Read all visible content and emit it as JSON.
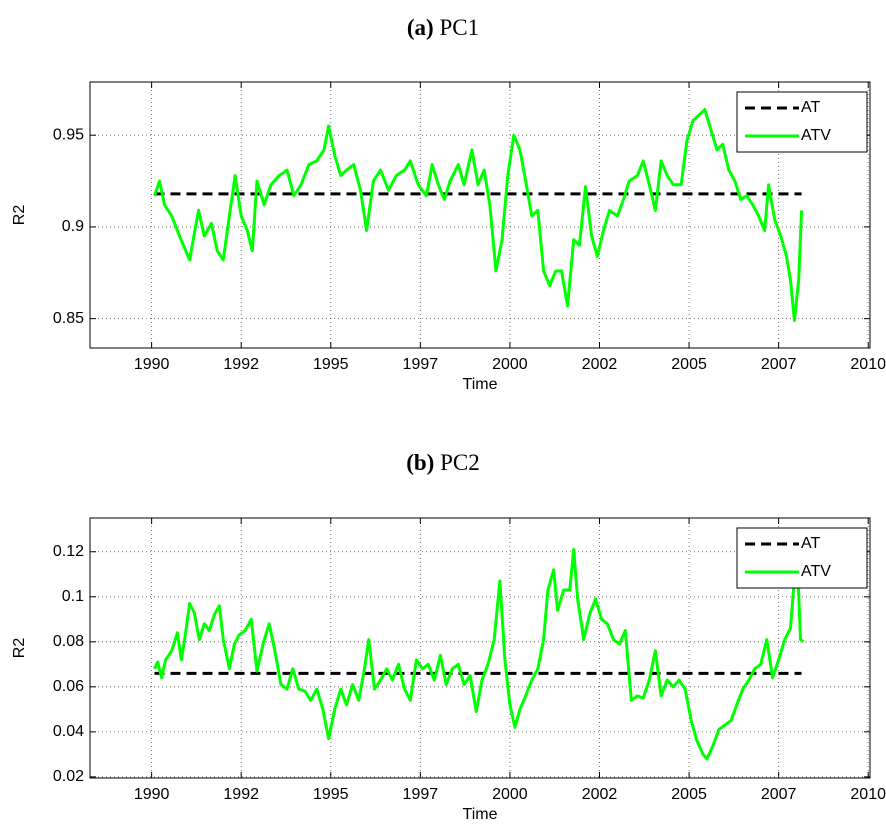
{
  "chart_data": [
    {
      "type": "line",
      "panel_label": "(a)",
      "title": "PC1",
      "xlabel": "Time",
      "ylabel": "R2",
      "xlim": [
        1988.28,
        2010.05
      ],
      "xticks": [
        1990,
        {
          "value": 1992.5,
          "label": "1992"
        },
        1995,
        {
          "value": 1997.5,
          "label": "1997"
        },
        2000,
        {
          "value": 2002.5,
          "label": "2002"
        },
        2005,
        {
          "value": 2007.5,
          "label": "2007"
        },
        2010
      ],
      "ylim": [
        0.834,
        0.979
      ],
      "yticks": [
        0.85,
        0.9,
        0.95
      ],
      "grid": true,
      "legend": "upper right",
      "series": [
        {
          "name": "AT",
          "color": "#000000",
          "style": "dashed",
          "x": [
            1990.08,
            2008.14
          ],
          "values": [
            0.918,
            0.918
          ]
        },
        {
          "name": "ATV",
          "color": "#00ff00",
          "style": "solid",
          "x": [
            1990.08,
            1990.22,
            1990.36,
            1990.56,
            1990.78,
            1991.06,
            1991.31,
            1991.47,
            1991.67,
            1991.83,
            1992.0,
            1992.17,
            1992.33,
            1992.5,
            1992.67,
            1992.81,
            1992.94,
            1993.14,
            1993.33,
            1993.56,
            1993.78,
            1993.97,
            1994.17,
            1994.39,
            1994.61,
            1994.81,
            1994.94,
            1995.11,
            1995.28,
            1995.44,
            1995.64,
            1995.83,
            1996.0,
            1996.19,
            1996.39,
            1996.61,
            1996.83,
            1997.06,
            1997.22,
            1997.44,
            1997.67,
            1997.83,
            1998.0,
            1998.17,
            1998.33,
            1998.56,
            1998.72,
            1998.94,
            1999.11,
            1999.28,
            1999.44,
            1999.61,
            1999.78,
            1999.94,
            2000.11,
            2000.28,
            2000.44,
            2000.61,
            2000.78,
            2000.94,
            2001.11,
            2001.28,
            2001.44,
            2001.61,
            2001.78,
            2001.94,
            2002.11,
            2002.28,
            2002.44,
            2002.61,
            2002.78,
            2003.0,
            2003.17,
            2003.33,
            2003.56,
            2003.72,
            2003.89,
            2004.06,
            2004.22,
            2004.39,
            2004.56,
            2004.78,
            2004.94,
            2005.11,
            2005.28,
            2005.44,
            2005.61,
            2005.78,
            2005.94,
            2006.11,
            2006.28,
            2006.44,
            2006.61,
            2006.78,
            2006.94,
            2007.11,
            2007.22,
            2007.39,
            2007.56,
            2007.72,
            2007.83,
            2007.94,
            2008.06,
            2008.14
          ],
          "values": [
            0.917,
            0.925,
            0.912,
            0.906,
            0.895,
            0.882,
            0.909,
            0.895,
            0.902,
            0.887,
            0.882,
            0.906,
            0.928,
            0.906,
            0.898,
            0.887,
            0.925,
            0.912,
            0.923,
            0.928,
            0.931,
            0.917,
            0.923,
            0.934,
            0.936,
            0.942,
            0.955,
            0.939,
            0.928,
            0.931,
            0.934,
            0.92,
            0.898,
            0.925,
            0.931,
            0.92,
            0.928,
            0.931,
            0.936,
            0.923,
            0.917,
            0.934,
            0.923,
            0.915,
            0.925,
            0.934,
            0.923,
            0.942,
            0.923,
            0.931,
            0.912,
            0.876,
            0.893,
            0.928,
            0.95,
            0.942,
            0.925,
            0.906,
            0.909,
            0.876,
            0.868,
            0.876,
            0.876,
            0.857,
            0.893,
            0.89,
            0.922,
            0.895,
            0.884,
            0.898,
            0.909,
            0.906,
            0.915,
            0.925,
            0.928,
            0.936,
            0.923,
            0.909,
            0.936,
            0.928,
            0.923,
            0.923,
            0.947,
            0.958,
            0.961,
            0.964,
            0.953,
            0.942,
            0.945,
            0.931,
            0.925,
            0.915,
            0.917,
            0.912,
            0.906,
            0.898,
            0.923,
            0.904,
            0.895,
            0.884,
            0.871,
            0.849,
            0.871,
            0.909
          ]
        }
      ]
    },
    {
      "type": "line",
      "panel_label": "(b)",
      "title": "PC2",
      "xlabel": "Time",
      "ylabel": "R2",
      "xlim": [
        1988.28,
        2010.05
      ],
      "xticks": [
        1990,
        {
          "value": 1992.5,
          "label": "1992"
        },
        1995,
        {
          "value": 1997.5,
          "label": "1997"
        },
        2000,
        {
          "value": 2002.5,
          "label": "2002"
        },
        2005,
        {
          "value": 2007.5,
          "label": "2007"
        },
        2010
      ],
      "ylim": [
        0.0195,
        0.135
      ],
      "yticks": [
        0.02,
        0.04,
        0.06,
        0.08,
        0.1,
        0.12
      ],
      "grid": true,
      "legend": "upper right",
      "series": [
        {
          "name": "AT",
          "color": "#000000",
          "style": "dashed",
          "x": [
            1990.08,
            2008.14
          ],
          "values": [
            0.066,
            0.066
          ]
        },
        {
          "name": "ATV",
          "color": "#00ff00",
          "style": "solid",
          "x": [
            1990.08,
            1990.17,
            1990.28,
            1990.39,
            1990.56,
            1990.72,
            1990.83,
            1990.94,
            1991.06,
            1991.19,
            1991.33,
            1991.47,
            1991.61,
            1991.75,
            1991.89,
            1992.0,
            1992.17,
            1992.31,
            1992.44,
            1992.61,
            1992.78,
            1992.94,
            1993.11,
            1993.28,
            1993.44,
            1993.61,
            1993.78,
            1993.94,
            1994.11,
            1994.28,
            1994.44,
            1994.61,
            1994.78,
            1994.94,
            1995.11,
            1995.28,
            1995.44,
            1995.61,
            1995.78,
            1995.94,
            1996.06,
            1996.22,
            1996.39,
            1996.56,
            1996.72,
            1996.89,
            1997.06,
            1997.22,
            1997.39,
            1997.56,
            1997.72,
            1997.89,
            1998.06,
            1998.22,
            1998.39,
            1998.56,
            1998.72,
            1998.89,
            1999.06,
            1999.22,
            1999.39,
            1999.56,
            1999.72,
            1999.86,
            2000.0,
            2000.14,
            2000.28,
            2000.44,
            2000.61,
            2000.78,
            2000.94,
            2001.06,
            2001.22,
            2001.33,
            2001.5,
            2001.67,
            2001.78,
            2001.89,
            2002.06,
            2002.22,
            2002.39,
            2002.56,
            2002.72,
            2002.89,
            2003.06,
            2003.22,
            2003.39,
            2003.56,
            2003.72,
            2003.89,
            2004.06,
            2004.22,
            2004.39,
            2004.56,
            2004.72,
            2004.89,
            2005.06,
            2005.22,
            2005.39,
            2005.5,
            2005.67,
            2005.83,
            2006.0,
            2006.17,
            2006.33,
            2006.5,
            2006.67,
            2006.83,
            2007.0,
            2007.17,
            2007.33,
            2007.5,
            2007.67,
            2007.83,
            2007.94,
            2008.03,
            2008.11,
            2008.19
          ],
          "values": [
            0.068,
            0.071,
            0.064,
            0.072,
            0.076,
            0.084,
            0.072,
            0.083,
            0.097,
            0.093,
            0.081,
            0.088,
            0.085,
            0.092,
            0.096,
            0.081,
            0.068,
            0.079,
            0.083,
            0.085,
            0.09,
            0.067,
            0.079,
            0.088,
            0.076,
            0.061,
            0.059,
            0.068,
            0.059,
            0.058,
            0.054,
            0.059,
            0.05,
            0.037,
            0.05,
            0.059,
            0.052,
            0.061,
            0.054,
            0.068,
            0.081,
            0.059,
            0.063,
            0.068,
            0.063,
            0.07,
            0.059,
            0.054,
            0.072,
            0.068,
            0.07,
            0.063,
            0.074,
            0.061,
            0.068,
            0.07,
            0.061,
            0.065,
            0.049,
            0.063,
            0.07,
            0.081,
            0.107,
            0.072,
            0.052,
            0.042,
            0.05,
            0.056,
            0.063,
            0.068,
            0.081,
            0.103,
            0.112,
            0.094,
            0.103,
            0.103,
            0.121,
            0.099,
            0.081,
            0.092,
            0.099,
            0.09,
            0.088,
            0.081,
            0.079,
            0.085,
            0.054,
            0.056,
            0.055,
            0.063,
            0.076,
            0.056,
            0.063,
            0.06,
            0.063,
            0.059,
            0.045,
            0.036,
            0.03,
            0.028,
            0.034,
            0.041,
            0.043,
            0.045,
            0.052,
            0.059,
            0.063,
            0.068,
            0.07,
            0.081,
            0.064,
            0.072,
            0.081,
            0.086,
            0.108,
            0.114,
            0.081,
            0.08
          ]
        }
      ]
    }
  ]
}
